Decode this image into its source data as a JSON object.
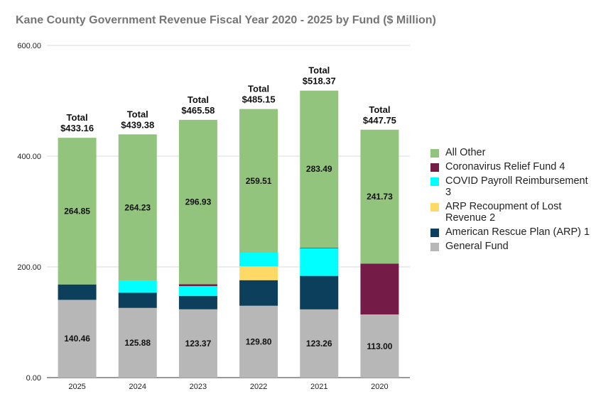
{
  "chart_data": {
    "type": "bar",
    "stacked": true,
    "title": "Kane County Government Revenue Fiscal Year 2020 - 2025 by Fund ($ Million)",
    "xlabel": "",
    "ylabel": "",
    "ylim": [
      0,
      600
    ],
    "yticks": [
      "0.00",
      "200.00",
      "400.00",
      "600.00"
    ],
    "grid": true,
    "legend_position": "right",
    "categories": [
      "2025",
      "2024",
      "2023",
      "2022",
      "2021",
      "2020"
    ],
    "totals": [
      "Total $433.16",
      "Total $439.38",
      "Total $465.58",
      "Total $485.15",
      "Total $518.37",
      "Total $447.75"
    ],
    "series": [
      {
        "name": "General Fund",
        "color": "#b7b7b7",
        "values": [
          140.46,
          125.88,
          123.37,
          129.8,
          123.26,
          113.0
        ],
        "labels": [
          "140.46",
          "125.88",
          "123.37",
          "129.80",
          "123.26",
          "113.00"
        ]
      },
      {
        "name": "American Rescue Plan (ARP) 1",
        "color": "#0b3f5c",
        "values": [
          27.85,
          27.37,
          24.3,
          46.2,
          60.5,
          0
        ],
        "labels": [
          "",
          "",
          "",
          "",
          "",
          ""
        ]
      },
      {
        "name": "ARP Recoupment of Lost Revenue 2",
        "color": "#ffd966",
        "values": [
          0,
          0,
          0,
          25.0,
          0,
          0
        ],
        "labels": [
          "",
          "",
          "",
          "",
          "",
          ""
        ]
      },
      {
        "name": "COVID Payroll Reimbursement 3",
        "color": "#00ffff",
        "values": [
          0,
          21.9,
          17.6,
          24.64,
          50.0,
          1.0
        ],
        "labels": [
          "",
          "",
          "",
          "",
          "",
          ""
        ]
      },
      {
        "name": "Coronavirus Relief Fund 4",
        "color": "#741b47",
        "values": [
          0,
          0,
          3.38,
          0,
          1.12,
          92.02
        ],
        "labels": [
          "",
          "",
          "",
          "",
          "",
          ""
        ]
      },
      {
        "name": "All Other",
        "color": "#93c47d",
        "values": [
          264.85,
          264.23,
          296.93,
          259.51,
          283.49,
          241.73
        ],
        "labels": [
          "264.85",
          "264.23",
          "296.93",
          "259.51",
          "283.49",
          "241.73"
        ]
      }
    ],
    "legend_order": [
      5,
      4,
      3,
      2,
      1,
      0
    ]
  }
}
